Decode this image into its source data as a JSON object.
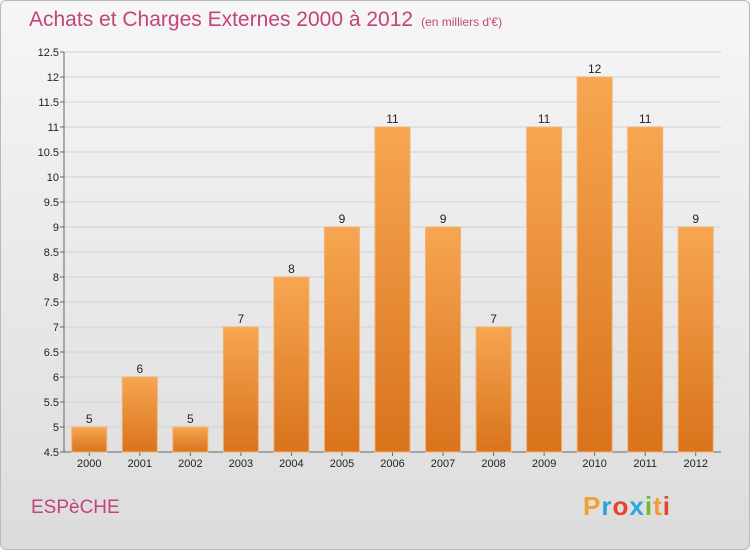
{
  "header": {
    "title": "Achats et Charges Externes 2000 à 2012",
    "subtitle": "(en milliers d'€)"
  },
  "footer": {
    "commune": "ESPèCHE",
    "logo": {
      "letters": [
        "P",
        "r",
        "o",
        "x",
        "i",
        "t",
        "i"
      ],
      "colors": [
        "#f0a030",
        "#29a3d6",
        "#e9432a",
        "#2aa8e0",
        "#77b82a",
        "#f0a030",
        "#e9432a"
      ]
    }
  },
  "chart_data": {
    "type": "bar",
    "title": "Achats et Charges Externes 2000 à 2012",
    "subtitle": "(en milliers d'€)",
    "categories": [
      "2000",
      "2001",
      "2002",
      "2003",
      "2004",
      "2005",
      "2006",
      "2007",
      "2008",
      "2009",
      "2010",
      "2011",
      "2012"
    ],
    "values": [
      5,
      6,
      5,
      7,
      8,
      9,
      11,
      9,
      7,
      11,
      12,
      11,
      9
    ],
    "ylim": [
      4.5,
      12.5
    ],
    "yticks": [
      "4.5",
      "5",
      "5.5",
      "6",
      "6.5",
      "7",
      "7.5",
      "8",
      "8.5",
      "9",
      "9.5",
      "10",
      "10.5",
      "11",
      "11.5",
      "12",
      "12.5"
    ],
    "grid": true,
    "bar_color": "#f0943a"
  }
}
